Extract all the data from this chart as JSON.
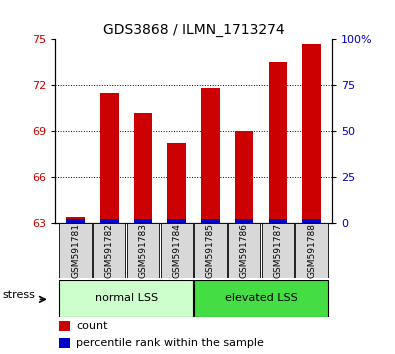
{
  "title": "GDS3868 / ILMN_1713274",
  "categories": [
    "GSM591781",
    "GSM591782",
    "GSM591783",
    "GSM591784",
    "GSM591785",
    "GSM591786",
    "GSM591787",
    "GSM591788"
  ],
  "red_values": [
    63.4,
    71.5,
    70.2,
    68.2,
    71.8,
    69.0,
    73.5,
    74.7
  ],
  "blue_values": [
    0.28,
    0.28,
    0.28,
    0.28,
    0.28,
    0.28,
    0.28,
    0.28
  ],
  "ylim_left": [
    63,
    75
  ],
  "yticks_left": [
    63,
    66,
    69,
    72,
    75
  ],
  "ylim_right": [
    0,
    100
  ],
  "yticks_right": [
    0,
    25,
    50,
    75,
    100
  ],
  "group1_label": "normal LSS",
  "group2_label": "elevated LSS",
  "bar_bottom": 63,
  "red_color": "#cc0000",
  "blue_color": "#0000cc",
  "group1_color": "#ccffcc",
  "group2_color": "#44dd44",
  "stress_label": "stress",
  "legend_count": "count",
  "legend_percentile": "percentile rank within the sample",
  "title_fontsize": 10,
  "axis_label_color_left": "#cc0000",
  "axis_label_color_right": "#0000cc",
  "bar_width": 0.55
}
